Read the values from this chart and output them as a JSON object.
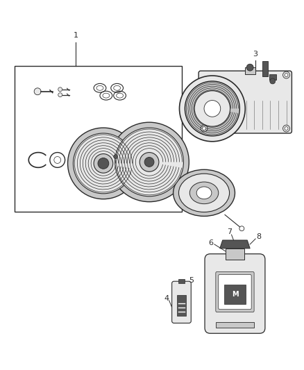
{
  "bg_color": "#ffffff",
  "line_color": "#2a2a2a",
  "gray_light": "#c8c8c8",
  "gray_mid": "#999999",
  "gray_dark": "#555555",
  "gray_very_light": "#e8e8e8",
  "figsize": [
    4.38,
    5.33
  ],
  "dpi": 100,
  "font_size": 8,
  "label_color": "#222222"
}
